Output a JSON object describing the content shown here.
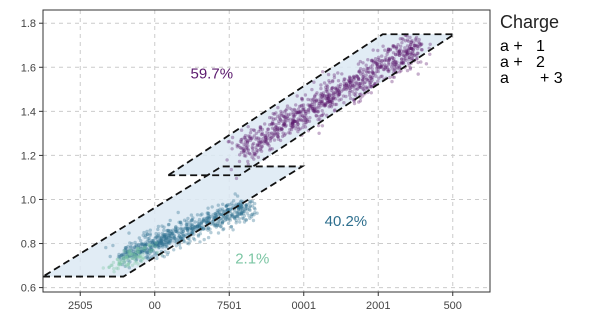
{
  "chart_data": {
    "type": "scatter",
    "title": "",
    "xlabel": "",
    "ylabel": "",
    "x_tick_labels": [
      "2505",
      "00",
      "7501",
      "0001",
      "2001",
      "500"
    ],
    "y_ticks": [
      0.6,
      0.8,
      1.0,
      1.2,
      1.4,
      1.6,
      1.8
    ],
    "y_tick_labels": [
      "0.6",
      "0.8",
      "1.0",
      "1.2",
      "1.4",
      "1.6",
      "1.8"
    ],
    "xlim": [
      0,
      100
    ],
    "ylim": [
      0.58,
      1.86
    ],
    "grid": true,
    "legend": {
      "title": "Charge",
      "placement": "right",
      "entries": [
        {
          "label": "a +   1",
          "color": "#5b1a6e"
        },
        {
          "label": "a +   2",
          "color": "#2e6f8e"
        },
        {
          "label": "a       + 3",
          "color": "#7cc6a4"
        }
      ]
    },
    "series": [
      {
        "label": "a + 1",
        "color": "#5b1a6e",
        "center_start": [
          44,
          1.22
        ],
        "center_end": [
          84,
          1.7
        ],
        "spread": 0.035,
        "count": 900
      },
      {
        "label": "a + 2",
        "color": "#2e6f8e",
        "center_start": [
          18,
          0.74
        ],
        "center_end": [
          46,
          0.97
        ],
        "spread": 0.025,
        "count": 700
      },
      {
        "label": "a + 3",
        "color": "#7cc6a4",
        "center_start": [
          16,
          0.7
        ],
        "center_end": [
          24,
          0.78
        ],
        "spread": 0.015,
        "count": 90
      }
    ],
    "regions": [
      {
        "points": [
          [
            28,
            1.11
          ],
          [
            44,
            1.11
          ],
          [
            92,
            1.75
          ],
          [
            76,
            1.75
          ]
        ],
        "fill": "#dce9f3"
      },
      {
        "points": [
          [
            0,
            0.65
          ],
          [
            18,
            0.65
          ],
          [
            58,
            1.15
          ],
          [
            40,
            1.15
          ]
        ],
        "fill": "#dce9f3"
      }
    ],
    "annotations": [
      {
        "text": "59.7%",
        "x": 33,
        "y": 1.55,
        "color": "#5b1a6e"
      },
      {
        "text": "40.2%",
        "x": 63,
        "y": 0.88,
        "color": "#2e6f8e"
      },
      {
        "text": "2.1%",
        "x": 43,
        "y": 0.71,
        "color": "#7cc6a4"
      }
    ]
  }
}
